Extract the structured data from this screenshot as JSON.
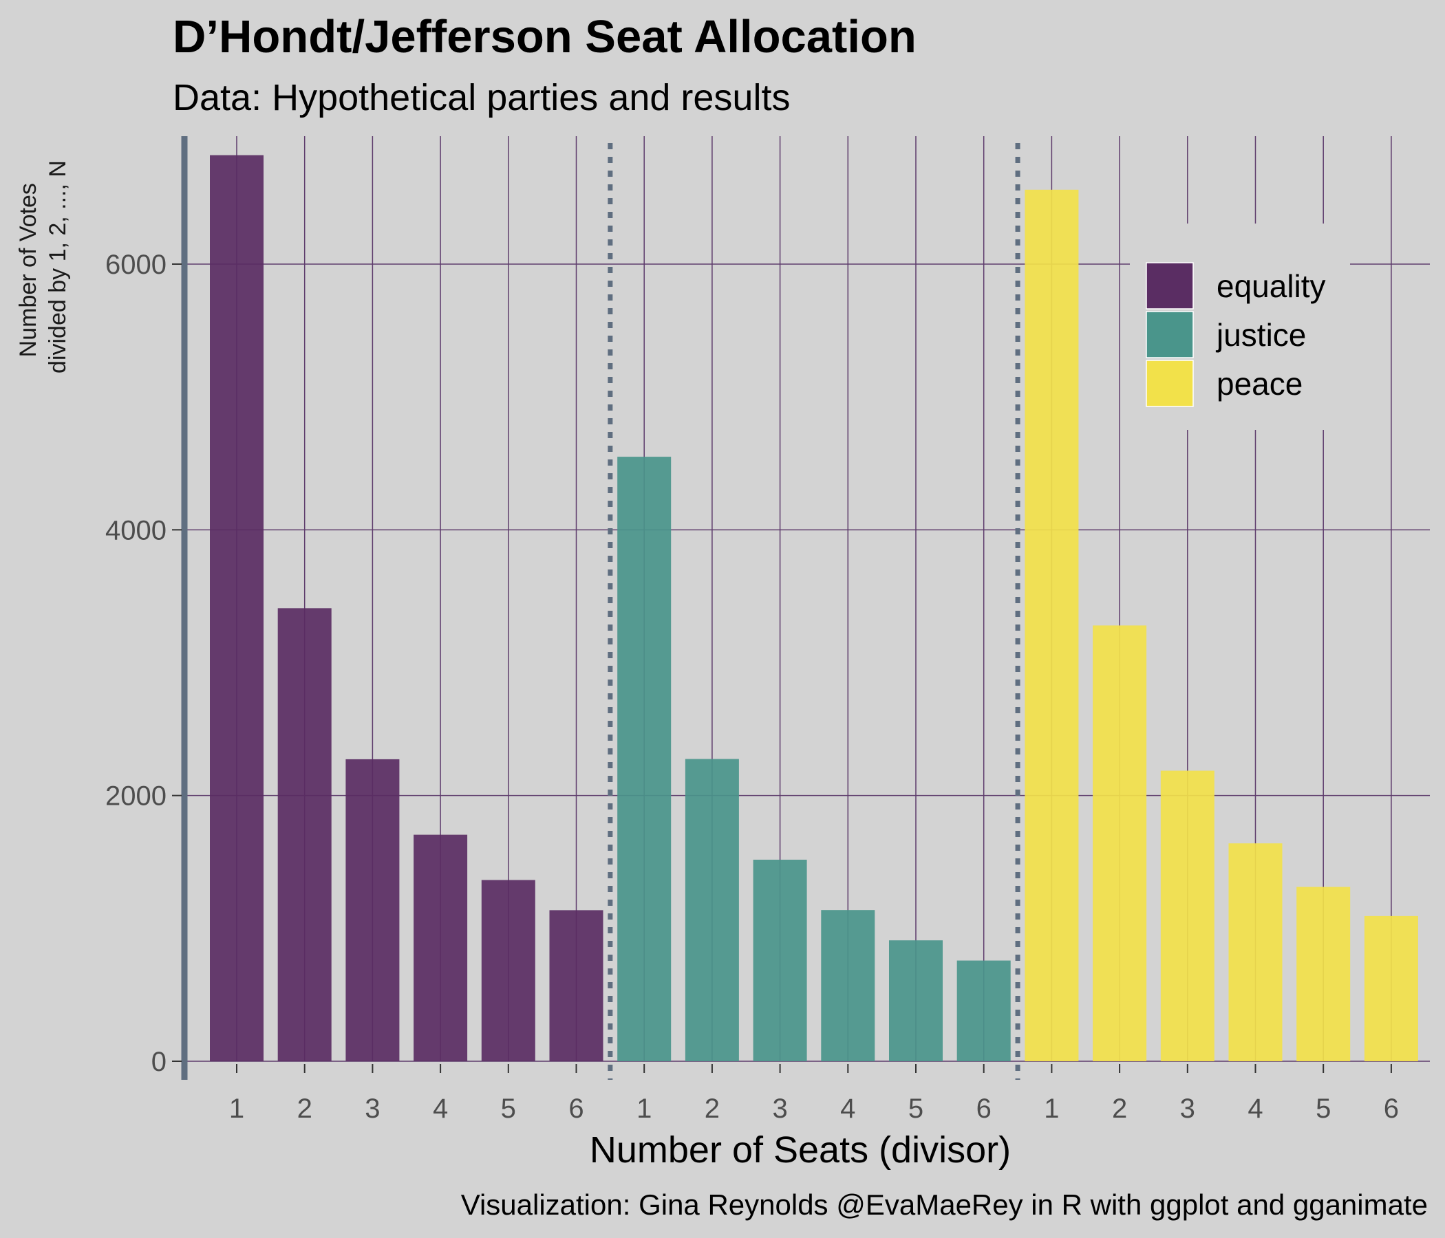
{
  "colors": {
    "equality": "#5a2d63",
    "justice": "#4a958b",
    "peace": "#f2e14a",
    "grid": "#5e3c6c",
    "axis": "#5f6e80",
    "background": "#d3d3d3"
  },
  "chart_data": {
    "type": "bar",
    "title": "D’Hondt/Jefferson Seat Allocation",
    "subtitle": "Data: Hypothetical parties and results",
    "ylabel": [
      "Number of Votes",
      "divided by 1, 2, ..., N"
    ],
    "xlabel": "Number of Seats (divisor)",
    "caption": "Visualization: Gina Reynolds @EvaMaeRey in R with ggplot and gganimate",
    "ylim": [
      0,
      7000
    ],
    "yticks": [
      0,
      2000,
      4000,
      6000
    ],
    "grid": true,
    "legend_position": "top-right",
    "categories": [
      "1",
      "2",
      "3",
      "4",
      "5",
      "6"
    ],
    "series": [
      {
        "name": "equality",
        "values": [
          6820,
          3410,
          2273,
          1705,
          1364,
          1137
        ]
      },
      {
        "name": "justice",
        "values": [
          4550,
          2275,
          1517,
          1138,
          910,
          758
        ]
      },
      {
        "name": "peace",
        "values": [
          6560,
          3280,
          2187,
          1640,
          1312,
          1093
        ]
      }
    ]
  }
}
